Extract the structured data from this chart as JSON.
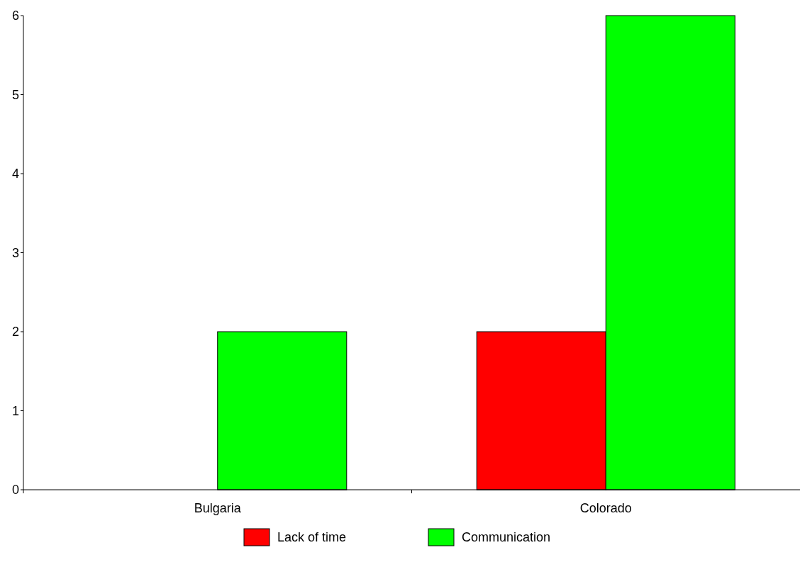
{
  "chart_data": {
    "type": "bar",
    "categories": [
      "Bulgaria",
      "Colorado"
    ],
    "series": [
      {
        "name": "Lack of time",
        "color": "#ff0000",
        "values": [
          0,
          2
        ]
      },
      {
        "name": "Communication",
        "color": "#00ff00",
        "values": [
          2,
          6
        ]
      }
    ],
    "ylim": [
      0,
      6
    ],
    "yticks": [
      0,
      1,
      2,
      3,
      4,
      5,
      6
    ],
    "grid": false,
    "legend": "bottom"
  }
}
